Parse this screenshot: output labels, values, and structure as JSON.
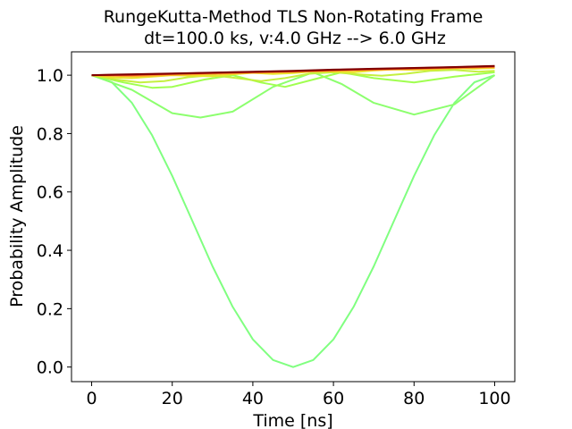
{
  "chart_data": {
    "type": "line",
    "title": "RungeKutta-Method TLS Non-Rotating Frame",
    "subtitle": "dt=100.0 ks, v:4.0 GHz --> 6.0 GHz",
    "xlabel": "Time [ns]",
    "ylabel": "Probability Amplitude",
    "xlim": [
      -5,
      105
    ],
    "ylim": [
      -0.05,
      1.08
    ],
    "xticks": [
      0,
      20,
      40,
      60,
      80,
      100
    ],
    "yticks": [
      0.0,
      0.2,
      0.4,
      0.6,
      0.8,
      1.0
    ],
    "xtick_labels": [
      "0",
      "20",
      "40",
      "60",
      "80",
      "100"
    ],
    "ytick_labels": [
      "0.0",
      "0.2",
      "0.4",
      "0.6",
      "0.8",
      "1.0"
    ],
    "grid": false,
    "legend": "none",
    "series": [
      {
        "color": "#80ff80",
        "x": [
          0,
          5,
          10,
          15,
          20,
          25,
          30,
          35,
          40,
          45,
          50,
          55,
          60,
          65,
          70,
          75,
          80,
          85,
          90,
          95,
          100
        ],
        "y": [
          1.0,
          0.976,
          0.905,
          0.794,
          0.655,
          0.5,
          0.345,
          0.206,
          0.095,
          0.024,
          0.0,
          0.024,
          0.095,
          0.206,
          0.345,
          0.5,
          0.655,
          0.794,
          0.905,
          0.976,
          1.0
        ]
      },
      {
        "color": "#8cff6e",
        "x": [
          0,
          10,
          20,
          27,
          35,
          45,
          55,
          62,
          70,
          80,
          90,
          100
        ],
        "y": [
          1.0,
          0.95,
          0.87,
          0.855,
          0.875,
          0.96,
          1.01,
          0.97,
          0.905,
          0.865,
          0.9,
          1.0
        ]
      },
      {
        "color": "#a0ff50",
        "x": [
          0,
          8,
          15,
          20,
          28,
          35,
          42,
          48,
          55,
          62,
          70,
          80,
          90,
          100
        ],
        "y": [
          1.0,
          0.975,
          0.957,
          0.96,
          0.985,
          1.0,
          0.975,
          0.96,
          0.985,
          1.01,
          0.99,
          0.975,
          0.995,
          1.01
        ]
      },
      {
        "color": "#c4f040",
        "x": [
          0,
          6,
          12,
          18,
          24,
          30,
          36,
          42,
          48,
          54,
          60,
          66,
          72,
          78,
          84,
          90,
          96,
          100
        ],
        "y": [
          1.0,
          0.985,
          0.975,
          0.98,
          0.993,
          1.0,
          0.99,
          0.98,
          0.99,
          1.005,
          1.01,
          1.003,
          0.998,
          1.005,
          1.015,
          1.018,
          1.012,
          1.015
        ]
      },
      {
        "color": "#e8e62c",
        "x": [
          0,
          5,
          10,
          15,
          20,
          25,
          30,
          35,
          40,
          45,
          50,
          55,
          60,
          65,
          70,
          75,
          80,
          85,
          90,
          95,
          100
        ],
        "y": [
          1.0,
          0.992,
          0.99,
          0.995,
          1.0,
          0.998,
          0.996,
          1.003,
          1.008,
          1.004,
          1.007,
          1.013,
          1.012,
          1.01,
          1.016,
          1.02,
          1.018,
          1.02,
          1.024,
          1.022,
          1.025
        ]
      },
      {
        "color": "#ffb02a",
        "x": [
          0,
          10,
          20,
          30,
          40,
          50,
          60,
          70,
          80,
          90,
          100
        ],
        "y": [
          1.0,
          0.996,
          1.001,
          1.004,
          1.008,
          1.011,
          1.015,
          1.018,
          1.021,
          1.024,
          1.027
        ]
      },
      {
        "color": "#f06a1c",
        "x": [
          0,
          10,
          20,
          30,
          40,
          50,
          60,
          70,
          80,
          90,
          100
        ],
        "y": [
          1.0,
          1.0,
          1.004,
          1.007,
          1.01,
          1.013,
          1.017,
          1.02,
          1.023,
          1.026,
          1.029
        ]
      },
      {
        "color": "#c01818",
        "x": [
          0,
          10,
          20,
          30,
          40,
          50,
          60,
          70,
          80,
          90,
          100
        ],
        "y": [
          1.0,
          1.002,
          1.005,
          1.008,
          1.011,
          1.014,
          1.018,
          1.021,
          1.024,
          1.027,
          1.031
        ]
      },
      {
        "color": "#800000",
        "x": [
          0,
          10,
          20,
          30,
          40,
          50,
          60,
          70,
          80,
          90,
          100
        ],
        "y": [
          1.0,
          1.003,
          1.006,
          1.009,
          1.012,
          1.015,
          1.019,
          1.022,
          1.025,
          1.028,
          1.032
        ]
      }
    ]
  }
}
